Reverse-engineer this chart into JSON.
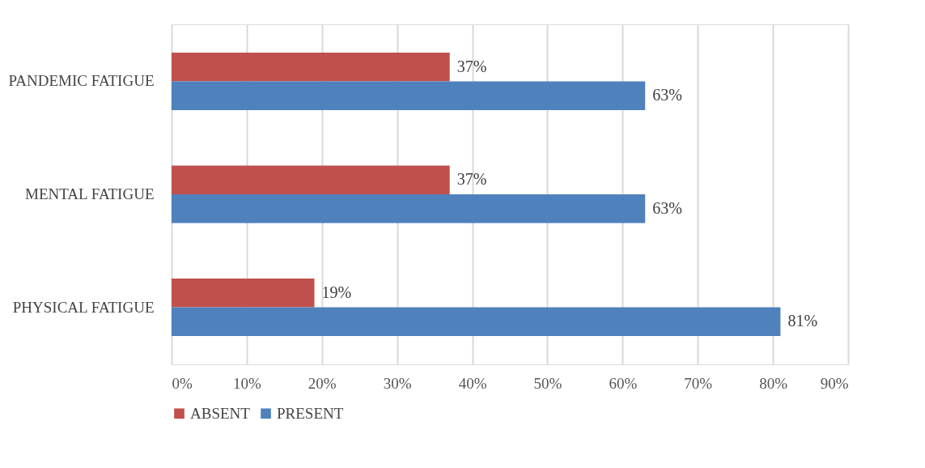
{
  "chart_data": {
    "type": "bar",
    "orientation": "horizontal",
    "categories": [
      "PANDEMIC FATIGUE",
      "MENTAL FATIGUE",
      "PHYSICAL FATIGUE"
    ],
    "series": [
      {
        "name": "ABSENT",
        "color": "#c0504d",
        "values": [
          37,
          37,
          19
        ],
        "value_labels": [
          "37%",
          "37%",
          "19%"
        ]
      },
      {
        "name": "PRESENT",
        "color": "#4f81bd",
        "values": [
          63,
          63,
          81
        ],
        "value_labels": [
          "63%",
          "63%",
          "81%"
        ]
      }
    ],
    "xlim": [
      0,
      90
    ],
    "xticks": [
      {
        "value": 0,
        "label": "0%"
      },
      {
        "value": 10,
        "label": "10%"
      },
      {
        "value": 20,
        "label": "20%"
      },
      {
        "value": 30,
        "label": "30%"
      },
      {
        "value": 40,
        "label": "40%"
      },
      {
        "value": 50,
        "label": "50%"
      },
      {
        "value": 60,
        "label": "60%"
      },
      {
        "value": 70,
        "label": "70%"
      },
      {
        "value": 80,
        "label": "80%"
      },
      {
        "value": 90,
        "label": "90%"
      }
    ],
    "grid": "x",
    "legend": "bottom"
  }
}
